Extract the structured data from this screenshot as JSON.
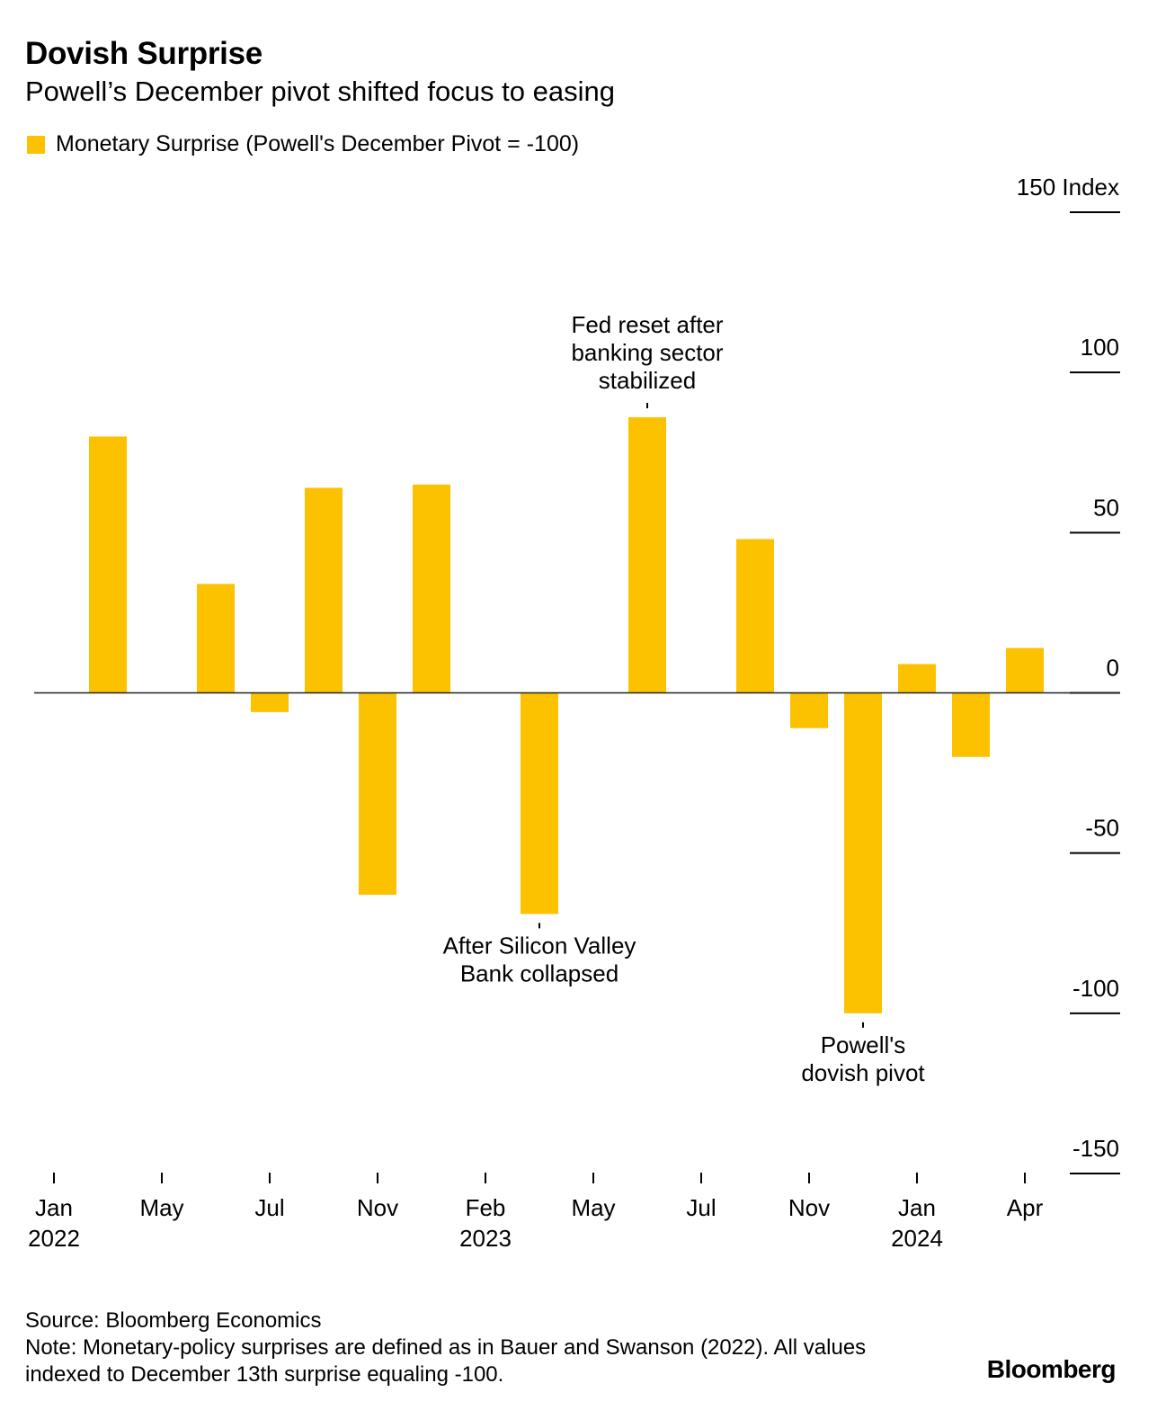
{
  "header": {
    "title": "Dovish Surprise",
    "subtitle": "Powell’s December pivot shifted focus to easing"
  },
  "legend": {
    "label": "Monetary Surprise (Powell's December Pivot = -100)",
    "color": "#FCC200"
  },
  "chart_data": {
    "type": "bar",
    "title": "Dovish Surprise",
    "subtitle": "Powell’s December pivot shifted focus to easing",
    "ylabel": "Index",
    "ylim": [
      -150,
      150
    ],
    "yticks": [
      150,
      100,
      50,
      0,
      -50,
      -100,
      -150
    ],
    "ytick_labels": [
      "150 Index",
      "100",
      "50",
      "0",
      "-50",
      "-100",
      "-150"
    ],
    "x_domain": [
      0,
      18.5
    ],
    "xticks": [
      {
        "pos": 0,
        "label": "Jan",
        "year": "2022"
      },
      {
        "pos": 2,
        "label": "May",
        "year": ""
      },
      {
        "pos": 4,
        "label": "Jul",
        "year": ""
      },
      {
        "pos": 6,
        "label": "Nov",
        "year": ""
      },
      {
        "pos": 8,
        "label": "Feb",
        "year": "2023"
      },
      {
        "pos": 10,
        "label": "May",
        "year": ""
      },
      {
        "pos": 12,
        "label": "Jul",
        "year": ""
      },
      {
        "pos": 14,
        "label": "Nov",
        "year": ""
      },
      {
        "pos": 16,
        "label": "Jan",
        "year": "2024"
      },
      {
        "pos": 18,
        "label": "Apr",
        "year": ""
      }
    ],
    "series": [
      {
        "name": "Monetary Surprise (Powell's December Pivot = -100)",
        "color": "#FCC200",
        "x": [
          1,
          3,
          4,
          5,
          6,
          7,
          9,
          11,
          13,
          14,
          15,
          16,
          17,
          18
        ],
        "values": [
          80,
          34,
          -6,
          64,
          -63,
          65,
          -69,
          86,
          48,
          -11,
          -100,
          9,
          -20,
          14
        ]
      }
    ],
    "annotations": [
      {
        "x": 11,
        "anchor_value": 86,
        "position": "above",
        "lines": [
          "Fed reset after",
          "banking sector",
          "stabilized"
        ]
      },
      {
        "x": 9,
        "anchor_value": -69,
        "position": "below",
        "lines": [
          "After Silicon Valley",
          "Bank collapsed"
        ]
      },
      {
        "x": 15,
        "anchor_value": -100,
        "position": "below",
        "lines": [
          "Powell's",
          "dovish pivot"
        ]
      }
    ],
    "grid": false,
    "legend_position": "top-left"
  },
  "footer": {
    "source": "Source: Bloomberg Economics",
    "note": "Note: Monetary-policy surprises are defined as in Bauer and Swanson (2022). All values indexed to December 13th surprise equaling -100.",
    "brand": "Bloomberg"
  }
}
